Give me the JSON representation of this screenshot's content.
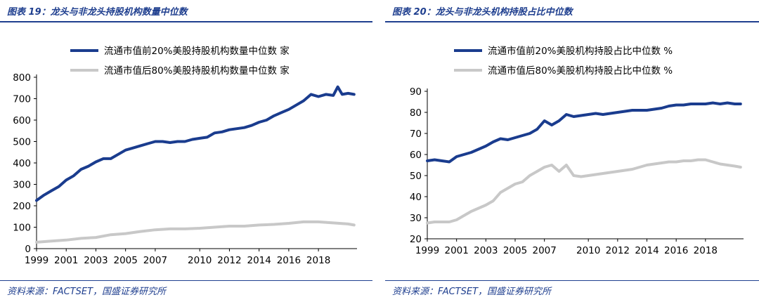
{
  "left": {
    "figure_title": "图表 19：龙头与非龙头持股机构数量中位数",
    "source": "资料来源：FACTSET，国盛证券研究所"
  },
  "right": {
    "figure_title": "图表 20：龙头与非龙头机构持股占比中位数",
    "source": "资料来源：FACTSET，国盛证券研究所"
  },
  "colors": {
    "series_top": "#1a3c8e",
    "series_bottom": "#c8c8c8",
    "title_blue": "#1f3f8f"
  },
  "chart_data": [
    {
      "type": "line",
      "title": "",
      "xlabel": "",
      "ylabel": "",
      "xlim": [
        1999.0,
        2020.6
      ],
      "ylim": [
        0,
        800
      ],
      "yticks": [
        0,
        100,
        200,
        300,
        400,
        500,
        600,
        700,
        800
      ],
      "xticks": [
        "1999",
        "2001",
        "2003",
        "2005",
        "2007",
        "2010",
        "2012",
        "2014",
        "2016",
        "2018"
      ],
      "legend_position": "top",
      "series": [
        {
          "name": "流通市值前20%美股持股机构数量中位数 家",
          "x": [
            1999.0,
            1999.5,
            2000.0,
            2000.5,
            2001.0,
            2001.5,
            2002.0,
            2002.5,
            2003.0,
            2003.5,
            2004.0,
            2004.5,
            2005.0,
            2005.5,
            2006.0,
            2006.5,
            2007.0,
            2007.5,
            2008.0,
            2008.5,
            2009.0,
            2009.5,
            2010.0,
            2010.5,
            2011.0,
            2011.5,
            2012.0,
            2012.5,
            2013.0,
            2013.5,
            2014.0,
            2014.5,
            2015.0,
            2015.5,
            2016.0,
            2016.5,
            2017.0,
            2017.5,
            2018.0,
            2018.5,
            2019.0,
            2019.3,
            2019.6,
            2020.0,
            2020.4
          ],
          "values": [
            225,
            250,
            270,
            290,
            320,
            340,
            370,
            385,
            405,
            420,
            420,
            440,
            460,
            470,
            480,
            490,
            500,
            500,
            495,
            500,
            500,
            510,
            515,
            520,
            540,
            545,
            555,
            560,
            565,
            575,
            590,
            600,
            620,
            635,
            650,
            670,
            690,
            720,
            710,
            720,
            715,
            755,
            720,
            725,
            720
          ]
        },
        {
          "name": "流通市值后80%美股持股机构数量中位数 家",
          "x": [
            1999.0,
            2000.0,
            2001.0,
            2002.0,
            2003.0,
            2004.0,
            2005.0,
            2006.0,
            2007.0,
            2008.0,
            2009.0,
            2010.0,
            2011.0,
            2012.0,
            2013.0,
            2014.0,
            2015.0,
            2016.0,
            2017.0,
            2018.0,
            2019.0,
            2020.0,
            2020.4
          ],
          "values": [
            30,
            35,
            40,
            48,
            52,
            65,
            70,
            80,
            88,
            92,
            92,
            95,
            100,
            105,
            105,
            110,
            113,
            118,
            125,
            125,
            120,
            115,
            110
          ]
        }
      ]
    },
    {
      "type": "line",
      "title": "",
      "xlabel": "",
      "ylabel": "",
      "xlim": [
        1999.0,
        2020.6
      ],
      "ylim": [
        20,
        90
      ],
      "yticks": [
        20,
        30,
        40,
        50,
        60,
        70,
        80,
        90
      ],
      "xticks": [
        "1999",
        "2001",
        "2003",
        "2005",
        "2007",
        "2010",
        "2012",
        "2014",
        "2016",
        "2018"
      ],
      "legend_position": "top",
      "series": [
        {
          "name": "流通市值前20%美股机构持股占比中位数 %",
          "x": [
            1999.0,
            1999.5,
            2000.0,
            2000.5,
            2001.0,
            2001.5,
            2002.0,
            2002.5,
            2003.0,
            2003.5,
            2004.0,
            2004.5,
            2005.0,
            2005.5,
            2006.0,
            2006.5,
            2007.0,
            2007.5,
            2008.0,
            2008.5,
            2009.0,
            2009.5,
            2010.0,
            2010.5,
            2011.0,
            2011.5,
            2012.0,
            2012.5,
            2013.0,
            2013.5,
            2014.0,
            2014.5,
            2015.0,
            2015.5,
            2016.0,
            2016.5,
            2017.0,
            2017.5,
            2018.0,
            2018.5,
            2019.0,
            2019.5,
            2020.0,
            2020.4
          ],
          "values": [
            57,
            57.5,
            57,
            56.5,
            59,
            60,
            61,
            62.5,
            64,
            66,
            67.5,
            67,
            68,
            69,
            70,
            72,
            76,
            74,
            76,
            79,
            78,
            78.5,
            79,
            79.5,
            79,
            79.5,
            80,
            80.5,
            81,
            81,
            81,
            81.5,
            82,
            83,
            83.5,
            83.5,
            84,
            84,
            84,
            84.5,
            84,
            84.5,
            84,
            84
          ]
        },
        {
          "name": "流通市值后80%美股机构持股占比中位数 %",
          "x": [
            1999.0,
            1999.5,
            2000.0,
            2000.5,
            2001.0,
            2001.5,
            2002.0,
            2002.5,
            2003.0,
            2003.5,
            2004.0,
            2004.5,
            2005.0,
            2005.5,
            2006.0,
            2006.5,
            2007.0,
            2007.5,
            2008.0,
            2008.5,
            2009.0,
            2009.5,
            2010.0,
            2010.5,
            2011.0,
            2011.5,
            2012.0,
            2012.5,
            2013.0,
            2013.5,
            2014.0,
            2014.5,
            2015.0,
            2015.5,
            2016.0,
            2016.5,
            2017.0,
            2017.5,
            2018.0,
            2018.5,
            2019.0,
            2019.5,
            2020.0,
            2020.4
          ],
          "values": [
            27.5,
            28,
            28,
            28,
            29,
            31,
            33,
            34.5,
            36,
            38,
            42,
            44,
            46,
            47,
            50,
            52,
            54,
            55,
            52,
            55,
            50,
            49.5,
            50,
            50.5,
            51,
            51.5,
            52,
            52.5,
            53,
            54,
            55,
            55.5,
            56,
            56.5,
            56.5,
            57,
            57,
            57.5,
            57.5,
            56.5,
            55.5,
            55,
            54.5,
            54
          ]
        }
      ]
    }
  ]
}
